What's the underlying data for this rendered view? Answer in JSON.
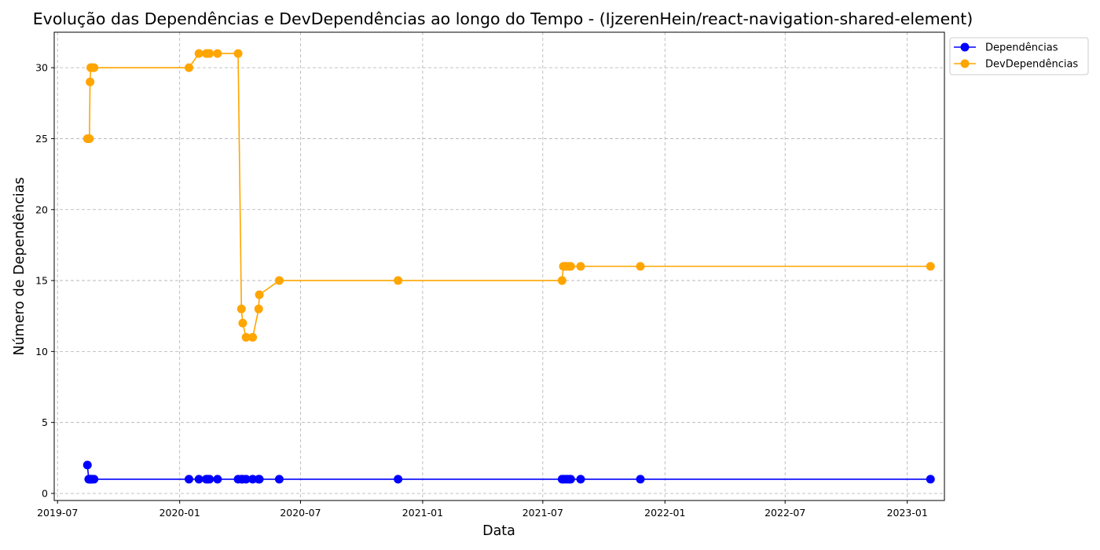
{
  "chart_data": {
    "type": "line",
    "title": "Evolução das Dependências e DevDependências ao longo do Tempo - (IjzerenHein/react-navigation-shared-element)",
    "xlabel": "Data",
    "ylabel": "Número de Dependências",
    "xlim": [
      "2019-06-26",
      "2023-02-26"
    ],
    "ylim": [
      -0.5,
      32.5
    ],
    "x_ticks": [
      "2019-07-01",
      "2020-01-01",
      "2020-07-01",
      "2021-01-01",
      "2021-07-01",
      "2022-01-01",
      "2022-07-01",
      "2023-01-01"
    ],
    "x_tick_labels": [
      "2019-07",
      "2020-01",
      "2020-07",
      "2021-01",
      "2021-07",
      "2022-01",
      "2022-07",
      "2023-01"
    ],
    "y_ticks": [
      0,
      5,
      10,
      15,
      20,
      25,
      30
    ],
    "y_tick_labels": [
      "0",
      "5",
      "10",
      "15",
      "20",
      "25",
      "30"
    ],
    "grid": true,
    "legend_position": "outside-top-right",
    "x": [
      "2019-08-15",
      "2019-08-17",
      "2019-08-18",
      "2019-08-19",
      "2019-08-20",
      "2019-08-21",
      "2019-08-22",
      "2019-08-25",
      "2020-01-15",
      "2020-01-30",
      "2020-02-10",
      "2020-02-12",
      "2020-02-15",
      "2020-02-27",
      "2020-03-29",
      "2020-04-03",
      "2020-04-05",
      "2020-04-10",
      "2020-04-20",
      "2020-04-29",
      "2020-04-30",
      "2020-05-30",
      "2020-11-25",
      "2021-07-30",
      "2021-08-01",
      "2021-08-04",
      "2021-08-07",
      "2021-08-10",
      "2021-08-12",
      "2021-08-27",
      "2021-11-25",
      "2023-02-05"
    ],
    "series": [
      {
        "name": "Dependências",
        "color": "#0000ff",
        "values": [
          2,
          1,
          1,
          1,
          1,
          1,
          1,
          1,
          1,
          1,
          1,
          1,
          1,
          1,
          1,
          1,
          1,
          1,
          1,
          1,
          1,
          1,
          1,
          1,
          1,
          1,
          1,
          1,
          1,
          1,
          1,
          1
        ]
      },
      {
        "name": "DevDependências",
        "color": "#ffa500",
        "values": [
          25,
          25,
          25,
          29,
          30,
          30,
          30,
          30,
          30,
          31,
          31,
          31,
          31,
          31,
          31,
          13,
          12,
          11,
          11,
          13,
          14,
          15,
          15,
          15,
          16,
          16,
          16,
          16,
          16,
          16,
          16,
          16
        ]
      }
    ]
  }
}
